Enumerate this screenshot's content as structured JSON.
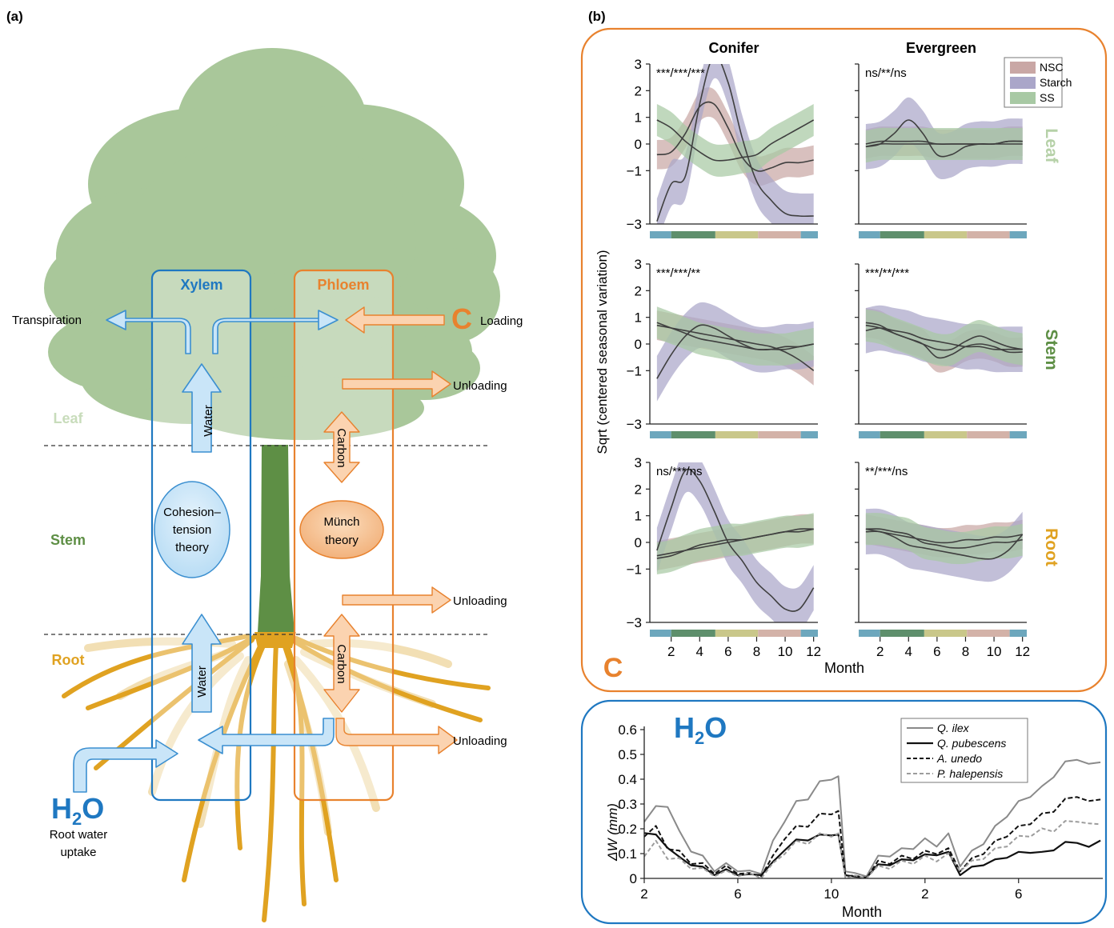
{
  "panel_a": {
    "label": "(a)",
    "xylem_title": "Xylem",
    "phloem_title": "Phloem",
    "level_leaf": "Leaf",
    "level_stem": "Stem",
    "level_root": "Root",
    "transpiration": "Transpiration",
    "loading": "Loading",
    "unloading": "Unloading",
    "water": "Water",
    "carbon": "Carbon",
    "cohesion_line1": "Cohesion–",
    "cohesion_line2": "tension",
    "cohesion_line3": "theory",
    "munch_line1": "Münch",
    "munch_line2": "theory",
    "c_symbol": "C",
    "h2o_main": "H",
    "h2o_sub": "2",
    "h2o_end": "O",
    "root_uptake_line1": "Root water",
    "root_uptake_line2": "uptake",
    "colors": {
      "xylem": "#1f78c1",
      "phloem": "#e8822e",
      "leaf": "#a9c79a",
      "stem": "#5e8f45",
      "root": "#e0a221"
    }
  },
  "panel_b": {
    "label": "(b)",
    "col_conifer": "Conifer",
    "col_evergreen": "Evergreen",
    "row_leaf": "Leaf",
    "row_stem": "Stem",
    "row_root": "Root",
    "ylabel": "Sqrt (centered seasonal variation)",
    "xlabel": "Month",
    "c_symbol": "C",
    "legend": [
      "NSC",
      "Starch",
      "SS"
    ],
    "sig": {
      "leaf_conifer": "***/***/***",
      "leaf_evergreen": "ns/**/ns",
      "stem_conifer": "***/***/**",
      "stem_evergreen": "***/**/***",
      "root_conifer": "ns/***/ns",
      "root_evergreen": "**/***/ns"
    },
    "y_ticks": [
      "3",
      "2",
      "1",
      "0",
      "−1",
      "−3"
    ],
    "x_ticks": [
      "2",
      "4",
      "6",
      "8",
      "10",
      "12"
    ],
    "colors": {
      "nsc": "#c9a7a5",
      "starch": "#aaa6c9",
      "ss": "#a8c9a4"
    }
  },
  "panel_c": {
    "h2o_main": "H",
    "h2o_sub": "2",
    "h2o_end": "O",
    "ylabel": "ΔW (mm)",
    "xlabel": "Month",
    "y_ticks": [
      "0.6",
      "0.5",
      "0.4",
      "0.3",
      "0.2",
      "0.1",
      "0"
    ],
    "x_ticks": [
      "2",
      "6",
      "10",
      "2",
      "6"
    ],
    "legend": [
      "Q. ilex",
      "Q. pubescens",
      "A. unedo",
      "P. halepensis"
    ]
  },
  "chart_data": [
    {
      "type": "area",
      "x": [
        1,
        2,
        3,
        4,
        5,
        6,
        7,
        8,
        9,
        10,
        11,
        12
      ],
      "xlabel": "Month",
      "ylabel": "Sqrt (centered seasonal variation)",
      "ylim": [
        -3,
        3
      ],
      "facets": [
        {
          "row": "Leaf",
          "col": "Conifer",
          "series": [
            {
              "name": "NSC",
              "values": [
                -0.4,
                -0.3,
                0.4,
                1.4,
                1.5,
                0.6,
                -0.5,
                -1.0,
                -0.9,
                -0.7,
                -0.7,
                -0.6
              ]
            },
            {
              "name": "Starch",
              "values": [
                -2.9,
                -1.5,
                -1.2,
                1.5,
                3.3,
                2.3,
                0.2,
                -1.4,
                -2.1,
                -2.6,
                -2.7,
                -2.7
              ]
            },
            {
              "name": "SS",
              "values": [
                0.9,
                0.6,
                0.1,
                -0.3,
                -0.6,
                -0.6,
                -0.5,
                -0.4,
                0.0,
                0.3,
                0.6,
                0.9
              ]
            }
          ]
        },
        {
          "row": "Leaf",
          "col": "Evergreen",
          "series": [
            {
              "name": "NSC",
              "values": [
                0.0,
                0.1,
                0.1,
                0.1,
                0.1,
                0.0,
                0.0,
                0.0,
                0.0,
                0.0,
                0.1,
                0.1
              ]
            },
            {
              "name": "Starch",
              "values": [
                -0.1,
                0.0,
                0.4,
                0.9,
                0.4,
                -0.4,
                -0.4,
                -0.1,
                0.0,
                0.0,
                0.1,
                0.1
              ]
            },
            {
              "name": "SS",
              "values": [
                -0.1,
                0.0,
                0.0,
                0.0,
                0.0,
                0.0,
                0.0,
                0.0,
                0.0,
                0.0,
                0.0,
                0.0
              ]
            }
          ]
        },
        {
          "row": "Stem",
          "col": "Conifer",
          "series": [
            {
              "name": "NSC",
              "values": [
                0.7,
                0.6,
                0.5,
                0.4,
                0.3,
                0.2,
                0.1,
                0.0,
                -0.1,
                -0.3,
                -0.6,
                -1.0
              ]
            },
            {
              "name": "Starch",
              "values": [
                -1.3,
                -0.4,
                0.3,
                0.7,
                0.6,
                0.3,
                0.0,
                -0.2,
                -0.2,
                -0.1,
                -0.1,
                0.0
              ]
            },
            {
              "name": "SS",
              "values": [
                0.8,
                0.6,
                0.4,
                0.2,
                0.1,
                0.0,
                -0.1,
                -0.2,
                -0.2,
                -0.2,
                -0.1,
                0.0
              ]
            }
          ]
        },
        {
          "row": "Stem",
          "col": "Evergreen",
          "series": [
            {
              "name": "NSC",
              "values": [
                0.8,
                0.7,
                0.4,
                0.2,
                0.0,
                -0.5,
                -0.4,
                -0.1,
                0.0,
                -0.1,
                -0.3,
                -0.3
              ]
            },
            {
              "name": "Starch",
              "values": [
                0.5,
                0.6,
                0.5,
                0.4,
                0.2,
                0.1,
                0.0,
                -0.1,
                -0.1,
                -0.2,
                -0.2,
                -0.2
              ]
            },
            {
              "name": "SS",
              "values": [
                0.7,
                0.6,
                0.4,
                0.2,
                0.0,
                -0.2,
                -0.2,
                0.1,
                0.3,
                0.1,
                -0.1,
                -0.2
              ]
            }
          ]
        },
        {
          "row": "Root",
          "col": "Conifer",
          "series": [
            {
              "name": "NSC",
              "values": [
                -0.5,
                -0.4,
                -0.3,
                -0.2,
                -0.1,
                0.0,
                0.1,
                0.2,
                0.3,
                0.4,
                0.5,
                0.5
              ]
            },
            {
              "name": "Starch",
              "values": [
                -0.3,
                1.3,
                2.7,
                2.3,
                1.2,
                0.0,
                -0.7,
                -1.5,
                -2.0,
                -2.5,
                -2.5,
                -1.7
              ]
            },
            {
              "name": "SS",
              "values": [
                -0.6,
                -0.5,
                -0.3,
                -0.1,
                0.0,
                0.1,
                0.1,
                0.2,
                0.3,
                0.4,
                0.4,
                0.5
              ]
            }
          ]
        },
        {
          "row": "Root",
          "col": "Evergreen",
          "series": [
            {
              "name": "NSC",
              "values": [
                0.5,
                0.4,
                0.3,
                0.2,
                0.1,
                0.0,
                0.0,
                0.1,
                0.1,
                0.2,
                0.2,
                0.3
              ]
            },
            {
              "name": "Starch",
              "values": [
                0.4,
                0.4,
                0.2,
                -0.1,
                -0.2,
                -0.3,
                -0.4,
                -0.5,
                -0.6,
                -0.6,
                -0.3,
                0.3
              ]
            },
            {
              "name": "SS",
              "values": [
                0.5,
                0.5,
                0.4,
                0.3,
                0.0,
                -0.1,
                -0.2,
                -0.2,
                -0.1,
                0.0,
                0.0,
                0.1
              ]
            }
          ]
        }
      ]
    },
    {
      "type": "line",
      "x": [
        2,
        2.5,
        3,
        3.5,
        4,
        4.5,
        5,
        5.5,
        6,
        6.5,
        7,
        7.5,
        8,
        8.5,
        9,
        9.5,
        10,
        10.3,
        10.6,
        11,
        11.5,
        12,
        12.5,
        13,
        13.5,
        14,
        14.5,
        15,
        15.5,
        16,
        16.5,
        17,
        17.5,
        18,
        18.5,
        19,
        19.5,
        20,
        20.5,
        21,
        21.5
      ],
      "xlabel": "Month",
      "ylabel": "ΔW (mm)",
      "ylim": [
        0,
        0.6
      ],
      "series": [
        {
          "name": "Q. ilex",
          "values": [
            0.24,
            0.28,
            0.3,
            0.18,
            0.12,
            0.08,
            0.04,
            0.05,
            0.04,
            0.02,
            0.03,
            0.14,
            0.24,
            0.3,
            0.33,
            0.38,
            0.41,
            0.4,
            0.04,
            0.01,
            0.02,
            0.08,
            0.1,
            0.11,
            0.13,
            0.15,
            0.14,
            0.17,
            0.06,
            0.1,
            0.15,
            0.2,
            0.26,
            0.3,
            0.34,
            0.36,
            0.42,
            0.46,
            0.49,
            0.45,
            0.48
          ]
        },
        {
          "name": "Q. pubescens",
          "values": [
            0.19,
            0.17,
            0.13,
            0.08,
            0.06,
            0.04,
            0.02,
            0.03,
            0.02,
            0.01,
            0.02,
            0.06,
            0.12,
            0.15,
            0.16,
            0.17,
            0.18,
            0.17,
            0.02,
            0.0,
            0.01,
            0.05,
            0.06,
            0.07,
            0.08,
            0.09,
            0.1,
            0.1,
            0.02,
            0.04,
            0.06,
            0.07,
            0.09,
            0.1,
            0.11,
            0.1,
            0.12,
            0.14,
            0.15,
            0.12,
            0.16
          ]
        },
        {
          "name": "A. unedo",
          "values": [
            0.18,
            0.2,
            0.13,
            0.1,
            0.07,
            0.05,
            0.03,
            0.04,
            0.03,
            0.01,
            0.02,
            0.08,
            0.17,
            0.2,
            0.22,
            0.25,
            0.27,
            0.26,
            0.02,
            0.0,
            0.01,
            0.06,
            0.07,
            0.08,
            0.09,
            0.1,
            0.11,
            0.11,
            0.04,
            0.07,
            0.11,
            0.14,
            0.18,
            0.2,
            0.23,
            0.25,
            0.28,
            0.31,
            0.34,
            0.3,
            0.33
          ]
        },
        {
          "name": "P. halepensis",
          "values": [
            0.1,
            0.14,
            0.09,
            0.07,
            0.05,
            0.03,
            0.02,
            0.02,
            0.02,
            0.01,
            0.01,
            0.05,
            0.11,
            0.14,
            0.15,
            0.17,
            0.18,
            0.17,
            0.01,
            0.0,
            0.01,
            0.04,
            0.05,
            0.06,
            0.07,
            0.08,
            0.08,
            0.09,
            0.04,
            0.06,
            0.09,
            0.11,
            0.14,
            0.16,
            0.18,
            0.19,
            0.2,
            0.22,
            0.24,
            0.21,
            0.23
          ]
        }
      ]
    }
  ]
}
